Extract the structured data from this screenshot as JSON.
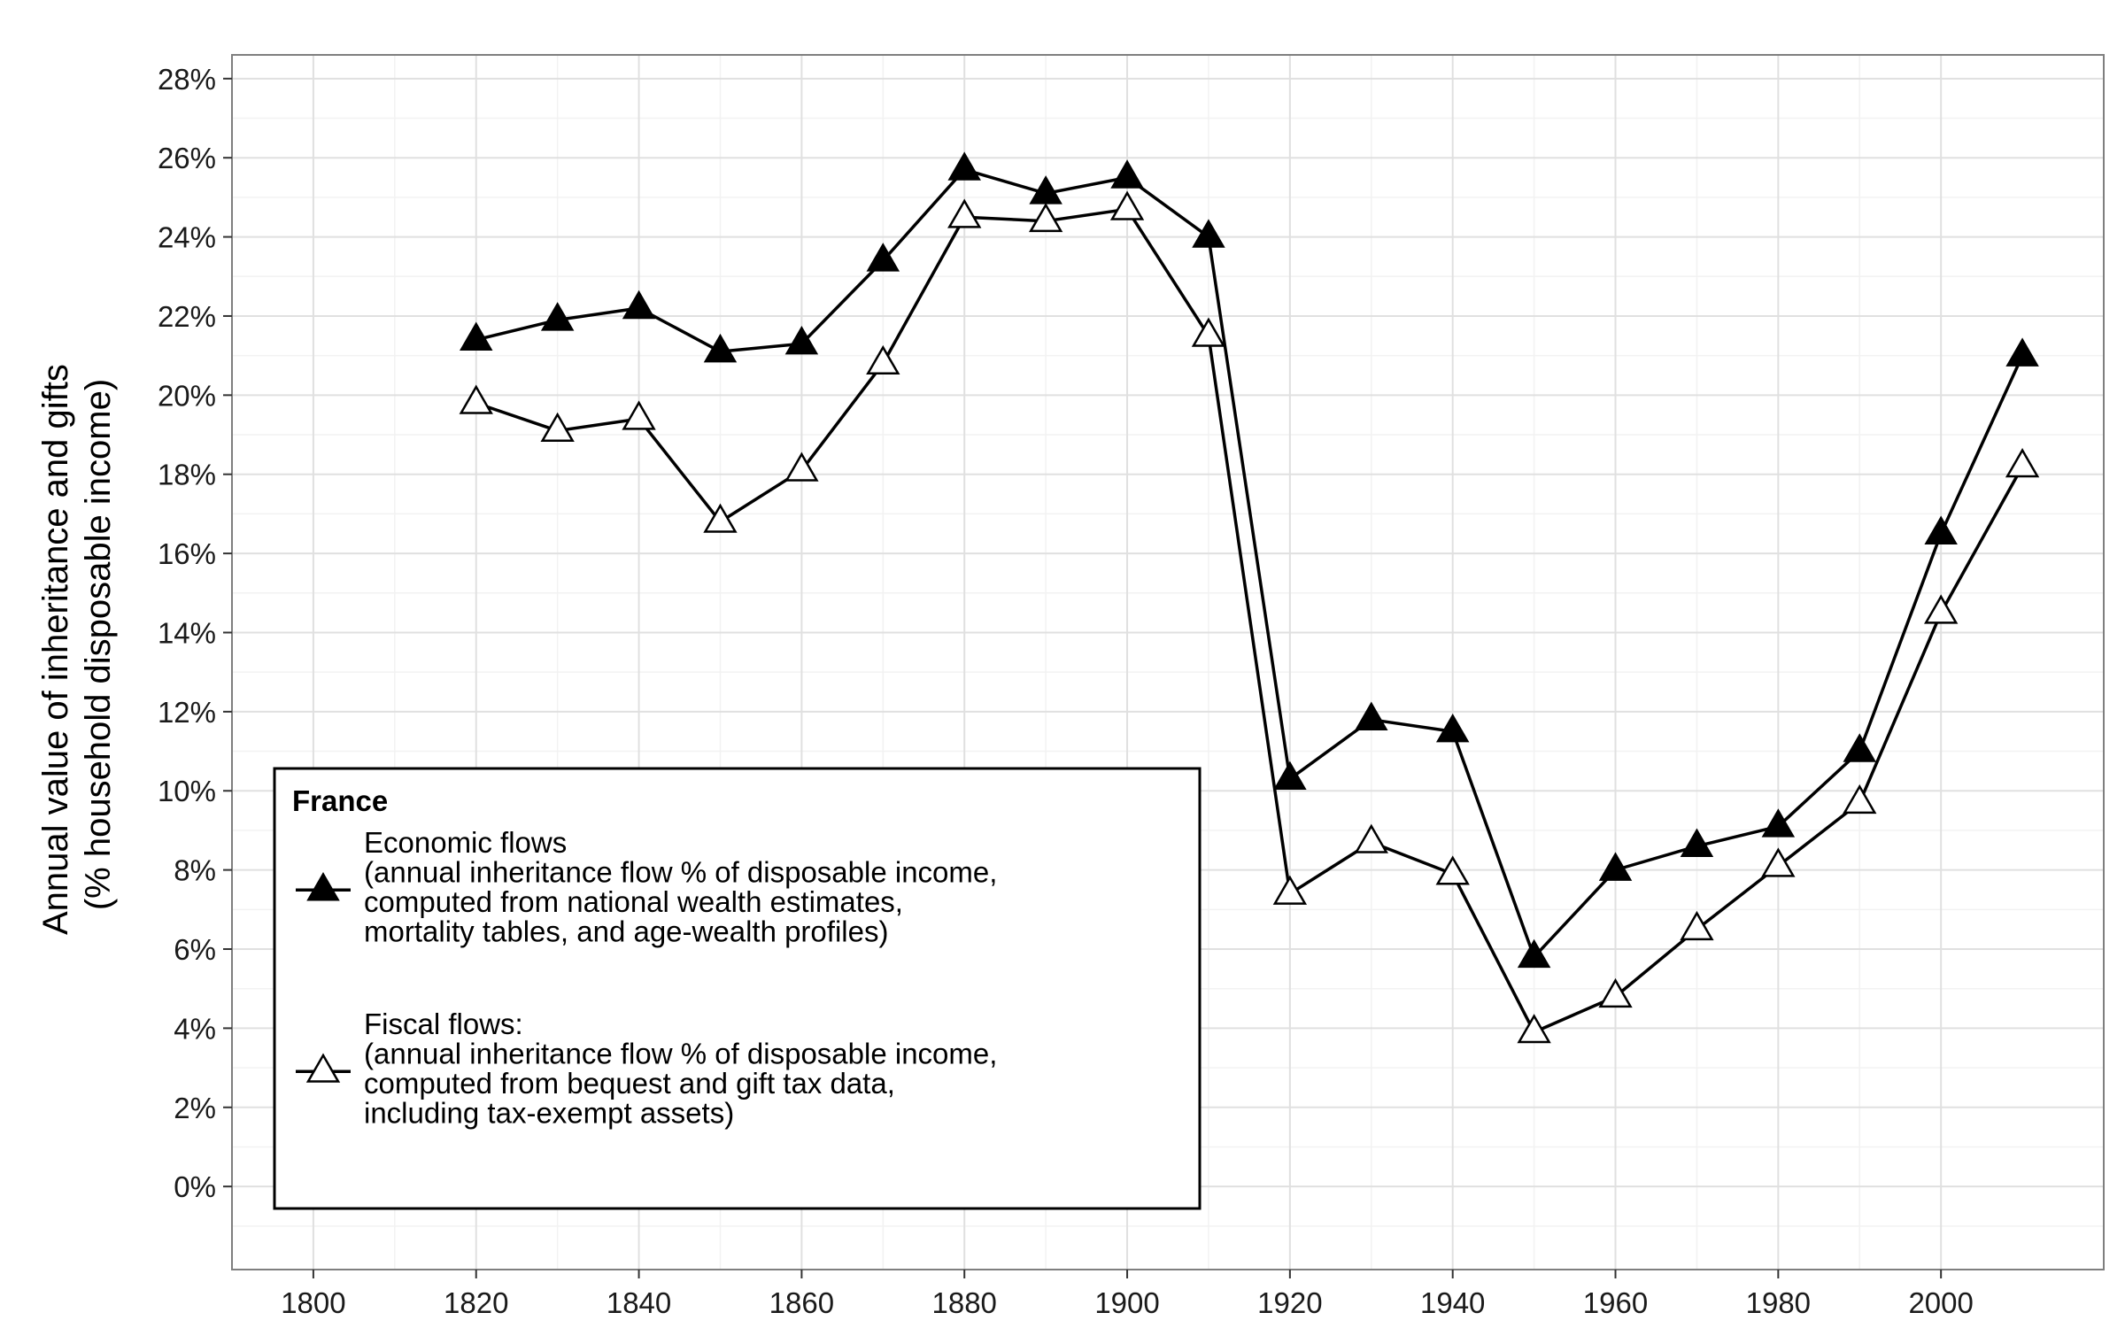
{
  "chart_data": {
    "type": "line",
    "title": "",
    "xlabel": "",
    "ylabel_lines": [
      "Annual value of inheritance and gifts",
      "(% household disposable income)"
    ],
    "xlim": [
      1790,
      2020
    ],
    "ylim": [
      -2.1,
      28.6
    ],
    "x_ticks": [
      1800,
      1820,
      1840,
      1860,
      1880,
      1900,
      1920,
      1940,
      1960,
      1980,
      2000
    ],
    "y_ticks": [
      0,
      2,
      4,
      6,
      8,
      10,
      12,
      14,
      16,
      18,
      20,
      22,
      24,
      26,
      28
    ],
    "y_tick_format": "%",
    "grid": true,
    "x": [
      1820,
      1830,
      1840,
      1850,
      1860,
      1870,
      1880,
      1890,
      1900,
      1910,
      1920,
      1930,
      1940,
      1950,
      1960,
      1970,
      1980,
      1990,
      2000,
      2010
    ],
    "series": [
      {
        "name": "Economic flows",
        "marker": "filled-triangle",
        "values": [
          21.4,
          21.9,
          22.2,
          21.1,
          21.3,
          23.4,
          25.7,
          25.1,
          25.5,
          24.0,
          10.3,
          11.8,
          11.5,
          5.8,
          8.0,
          8.6,
          9.1,
          11.0,
          16.5,
          21.0
        ]
      },
      {
        "name": "Fiscal flows:",
        "marker": "hollow-triangle",
        "values": [
          19.8,
          19.1,
          19.4,
          16.8,
          18.1,
          20.8,
          24.5,
          24.4,
          24.7,
          21.5,
          7.4,
          8.7,
          7.9,
          3.9,
          4.8,
          6.5,
          8.1,
          9.7,
          14.5,
          18.2
        ]
      }
    ],
    "legend": {
      "position": "bottom-left",
      "title": "France",
      "entries": [
        {
          "series": "Economic flows",
          "lines": [
            "Economic flows",
            "(annual inheritance flow % of disposable income,",
            "computed from national wealth estimates,",
            "mortality tables, and age-wealth profiles)"
          ]
        },
        {
          "series": "Fiscal flows:",
          "lines": [
            "Fiscal flows:",
            "(annual inheritance flow % of disposable income,",
            "computed from bequest and gift tax data,",
            "including tax-exempt assets)"
          ]
        }
      ]
    },
    "colors": {
      "line": "#000000",
      "grid_major": "#e0e0e0",
      "grid_minor": "#f2f2f2",
      "panel_border": "#7f7f7f",
      "tick_text": "#1a1a1a"
    }
  }
}
